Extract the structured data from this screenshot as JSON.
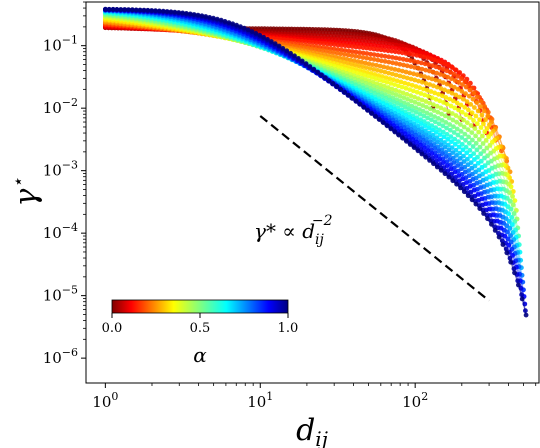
{
  "chart_data": {
    "type": "scatter",
    "title": "",
    "xlabel": "d_ij",
    "ylabel": "γ*",
    "xscale": "log",
    "yscale": "log",
    "xlim": [
      0.75,
      630
    ],
    "ylim": [
      4e-07,
      0.5
    ],
    "grid": false,
    "x_ticks": [
      {
        "value": 1,
        "base": "10",
        "exp": "0"
      },
      {
        "value": 10,
        "base": "10",
        "exp": "1"
      },
      {
        "value": 100,
        "base": "10",
        "exp": "2"
      }
    ],
    "y_ticks": [
      {
        "value": 0.1,
        "base": "10",
        "exp": "−1"
      },
      {
        "value": 0.01,
        "base": "10",
        "exp": "−2"
      },
      {
        "value": 0.001,
        "base": "10",
        "exp": "−3"
      },
      {
        "value": 0.0001,
        "base": "10",
        "exp": "−4"
      },
      {
        "value": 1e-05,
        "base": "10",
        "exp": "−5"
      },
      {
        "value": 1e-06,
        "base": "10",
        "exp": "−6"
      }
    ],
    "colormap": "jet_r",
    "colorbar": {
      "label": "α",
      "range": [
        0.0,
        1.0
      ],
      "ticks": [
        "0.0",
        "0.5",
        "1.0"
      ],
      "placement": "lower-left"
    },
    "reference_line": {
      "label_base": "γ* ∝ d",
      "label_sub": "ij",
      "label_exp": "−2",
      "x": [
        10,
        300
      ],
      "y": [
        0.0075,
        8.3e-06
      ],
      "style": "dashed"
    },
    "series": [
      {
        "alpha": 0.0,
        "y_at_1": 0.4,
        "knee": 0.3,
        "slope": 0.02,
        "cutoff": 130
      },
      {
        "alpha": 0.03,
        "y_at_1": 0.4,
        "knee": 0.4,
        "slope": 0.05,
        "cutoff": 165
      },
      {
        "alpha": 0.06,
        "y_at_1": 0.4,
        "knee": 0.55,
        "slope": 0.08,
        "cutoff": 200
      },
      {
        "alpha": 0.09,
        "y_at_1": 0.4,
        "knee": 0.75,
        "slope": 0.11,
        "cutoff": 240
      },
      {
        "alpha": 0.12,
        "y_at_1": 0.4,
        "knee": 0.95,
        "slope": 0.14,
        "cutoff": 290
      },
      {
        "alpha": 0.15,
        "y_at_1": 0.4,
        "knee": 1.15,
        "slope": 0.17,
        "cutoff": 330
      },
      {
        "alpha": 0.19,
        "y_at_1": 0.39,
        "knee": 1.35,
        "slope": 0.21,
        "cutoff": 360
      },
      {
        "alpha": 0.23,
        "y_at_1": 0.39,
        "knee": 1.55,
        "slope": 0.25,
        "cutoff": 390
      },
      {
        "alpha": 0.27,
        "y_at_1": 0.38,
        "knee": 1.75,
        "slope": 0.29,
        "cutoff": 410
      },
      {
        "alpha": 0.31,
        "y_at_1": 0.38,
        "knee": 1.95,
        "slope": 0.33,
        "cutoff": 420
      },
      {
        "alpha": 0.35,
        "y_at_1": 0.37,
        "knee": 2.2,
        "slope": 0.37,
        "cutoff": 430
      },
      {
        "alpha": 0.39,
        "y_at_1": 0.37,
        "knee": 2.45,
        "slope": 0.41,
        "cutoff": 440
      },
      {
        "alpha": 0.43,
        "y_at_1": 0.36,
        "knee": 2.7,
        "slope": 0.45,
        "cutoff": 450
      },
      {
        "alpha": 0.47,
        "y_at_1": 0.36,
        "knee": 2.95,
        "slope": 0.49,
        "cutoff": 455
      },
      {
        "alpha": 0.51,
        "y_at_1": 0.35,
        "knee": 3.25,
        "slope": 0.53,
        "cutoff": 460
      },
      {
        "alpha": 0.55,
        "y_at_1": 0.35,
        "knee": 3.55,
        "slope": 0.57,
        "cutoff": 465
      },
      {
        "alpha": 0.59,
        "y_at_1": 0.34,
        "knee": 3.85,
        "slope": 0.61,
        "cutoff": 470
      },
      {
        "alpha": 0.63,
        "y_at_1": 0.34,
        "knee": 4.2,
        "slope": 0.65,
        "cutoff": 475
      },
      {
        "alpha": 0.67,
        "y_at_1": 0.33,
        "knee": 4.55,
        "slope": 0.69,
        "cutoff": 480
      },
      {
        "alpha": 0.71,
        "y_at_1": 0.33,
        "knee": 4.9,
        "slope": 0.73,
        "cutoff": 485
      },
      {
        "alpha": 0.75,
        "y_at_1": 0.32,
        "knee": 5.3,
        "slope": 0.77,
        "cutoff": 490
      },
      {
        "alpha": 0.79,
        "y_at_1": 0.32,
        "knee": 5.7,
        "slope": 0.81,
        "cutoff": 495
      },
      {
        "alpha": 0.83,
        "y_at_1": 0.31,
        "knee": 6.1,
        "slope": 0.85,
        "cutoff": 500
      },
      {
        "alpha": 0.87,
        "y_at_1": 0.31,
        "knee": 6.5,
        "slope": 0.89,
        "cutoff": 505
      },
      {
        "alpha": 0.91,
        "y_at_1": 0.3,
        "knee": 6.9,
        "slope": 0.93,
        "cutoff": 510
      },
      {
        "alpha": 0.95,
        "y_at_1": 0.3,
        "knee": 7.3,
        "slope": 0.97,
        "cutoff": 515
      },
      {
        "alpha": 1.0,
        "y_at_1": 0.3,
        "knee": 7.7,
        "slope": 1.0,
        "cutoff": 520
      }
    ]
  }
}
